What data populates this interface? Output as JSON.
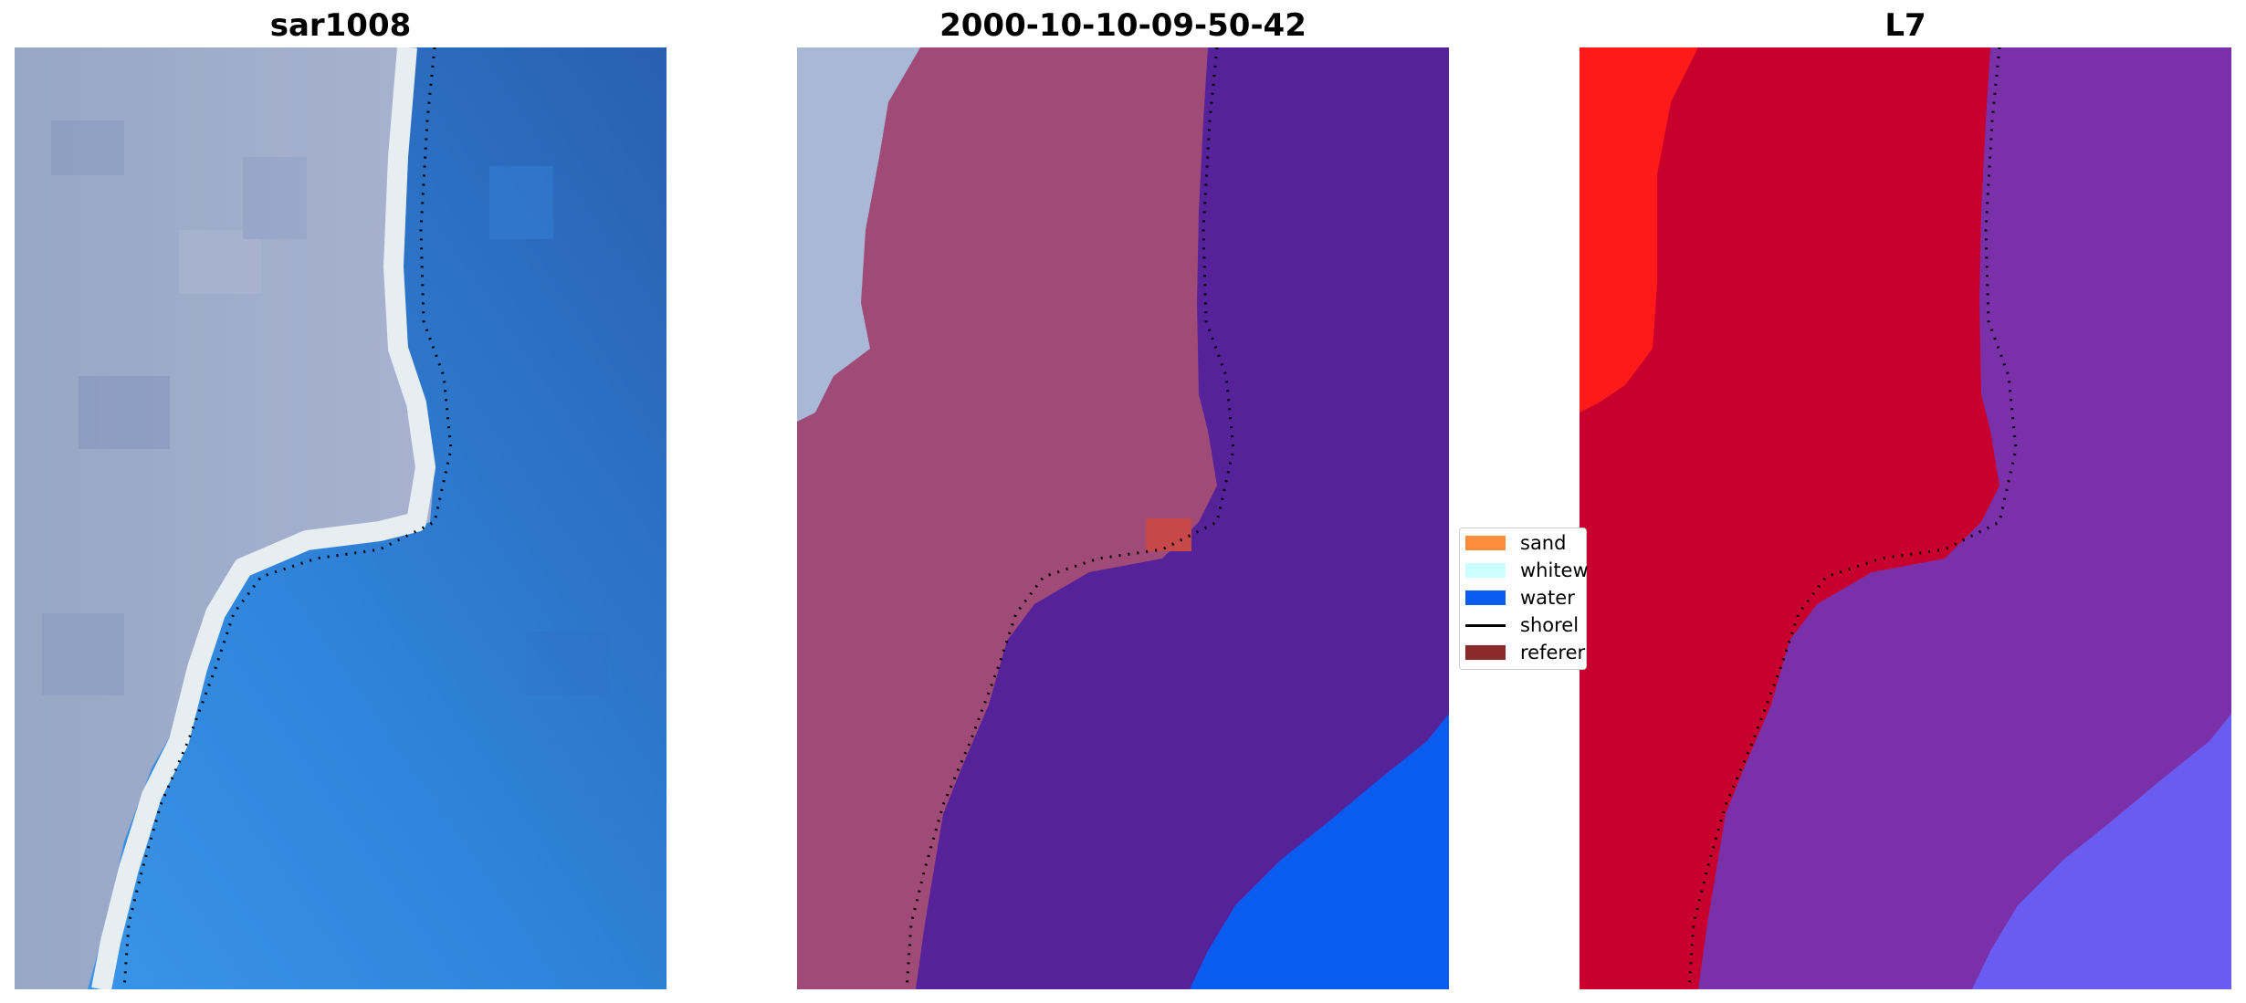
{
  "panels": [
    {
      "title": "sar1008"
    },
    {
      "title": "2000-10-10-09-50-42"
    },
    {
      "title": "L7"
    }
  ],
  "legend": {
    "items": [
      {
        "label": "sand",
        "color": "#ff8c3a",
        "kind": "patch"
      },
      {
        "label": "whitew",
        "color": "#ccffff",
        "kind": "patch"
      },
      {
        "label": "water",
        "color": "#0a5cf0",
        "kind": "patch"
      },
      {
        "label": "shorel",
        "color": "#000000",
        "kind": "line"
      },
      {
        "label": "referer",
        "color": "#8b2a2a",
        "kind": "patch"
      }
    ]
  },
  "colors": {
    "land_rgb": "#8a9bbe",
    "water_rgb": "#2a6cc4",
    "land_class": "#a04a78",
    "water_class": "#55229a",
    "ocean_class": "#0a5cf0",
    "land_index": "#c8002e",
    "water_index": "#7a30a8"
  }
}
